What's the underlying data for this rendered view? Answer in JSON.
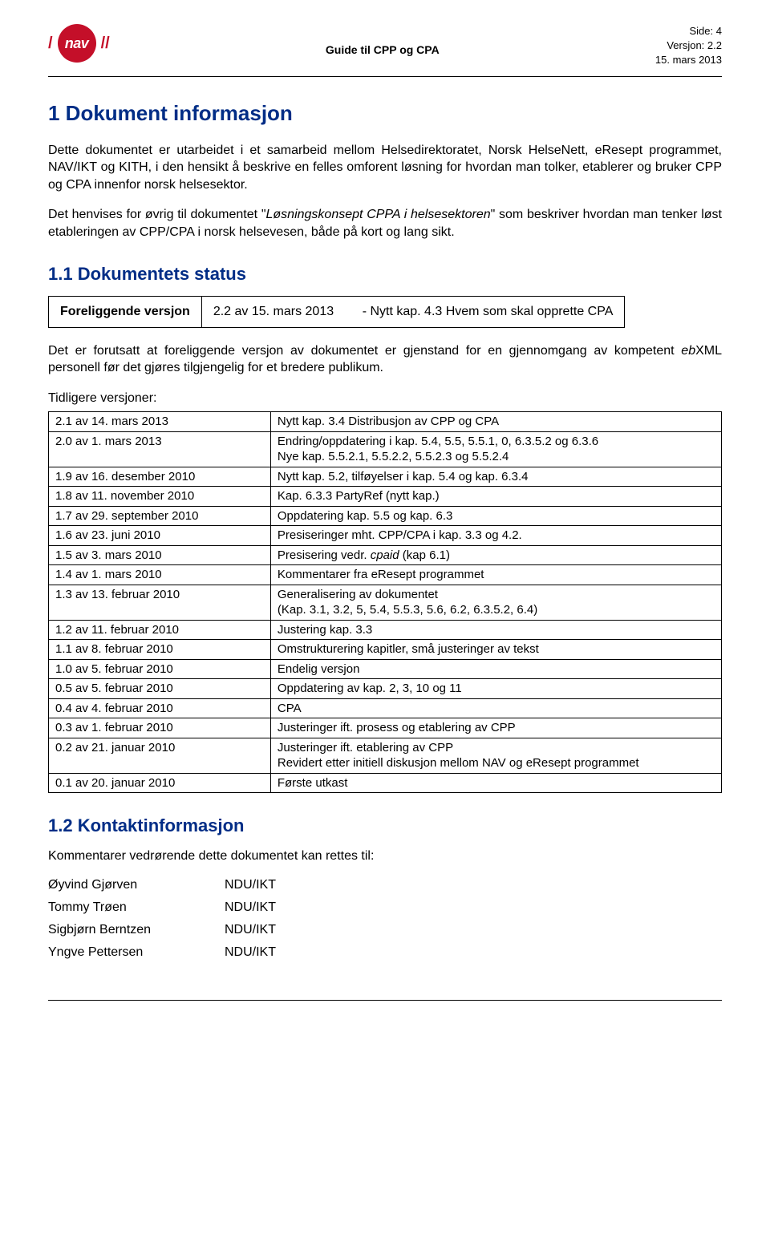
{
  "header": {
    "logo_text": "nav",
    "center_title": "Guide til CPP og CPA",
    "side_label": "Side:",
    "side_value": "4",
    "version_label": "Versjon:",
    "version_value": "2.2",
    "date": "15. mars 2013"
  },
  "section1": {
    "heading": "1  Dokument informasjon",
    "para1_before": "Dette dokumentet er utarbeidet i et samarbeid mellom Helsedirektoratet, Norsk HelseNett, eResept programmet, NAV/IKT og KITH, i den hensikt å beskrive en felles omforent løsning for hvordan man tolker, etablerer og bruker CPP og CPA innenfor norsk helsesektor.",
    "para2_prefix": "Det henvises for øvrig til dokumentet \"",
    "para2_italic": "Løsningskonsept CPPA i helsesektoren",
    "para2_suffix": "\" som beskriver hvordan man tenker løst etableringen av CPP/CPA i norsk helsevesen, både på kort og lang sikt."
  },
  "section1_1": {
    "heading": "1.1 Dokumentets status",
    "current_label": "Foreliggende versjon",
    "current_version": "2.2 av 15. mars 2013",
    "current_note": "- Nytt kap. 4.3 Hvem som skal opprette CPA",
    "para_before": "Det er forutsatt at foreliggende versjon av dokumentet er gjenstand for en gjennomgang av kompetent ",
    "para_italic": "eb",
    "para_after": "XML personell før det gjøres tilgjengelig for et bredere publikum.",
    "prev_label": "Tidligere versjoner:",
    "rows": [
      {
        "v": "2.1 av 14. mars 2013",
        "d": "Nytt kap. 3.4 Distribusjon av CPP og CPA"
      },
      {
        "v": "2.0 av 1. mars 2013",
        "d": "Endring/oppdatering i kap. 5.4, 5.5, 5.5.1, 0, 6.3.5.2 og 6.3.6\nNye kap. 5.5.2.1, 5.5.2.2, 5.5.2.3 og 5.5.2.4"
      },
      {
        "v": "1.9 av 16. desember 2010",
        "d": "Nytt kap. 5.2, tilføyelser i kap. 5.4 og kap. 6.3.4"
      },
      {
        "v": "1.8 av 11. november 2010",
        "d": "Kap. 6.3.3 PartyRef (nytt kap.)"
      },
      {
        "v": "1.7 av 29. september 2010",
        "d": "Oppdatering kap. 5.5 og kap. 6.3"
      },
      {
        "v": "1.6 av 23. juni 2010",
        "d": "Presiseringer mht. CPP/CPA i kap. 3.3 og 4.2."
      },
      {
        "v": "1.5 av 3. mars 2010",
        "d_prefix": "Presisering vedr. ",
        "d_italic": "cpaid",
        "d_suffix": " (kap 6.1)"
      },
      {
        "v": "1.4 av 1. mars 2010",
        "d": "Kommentarer fra eResept programmet"
      },
      {
        "v": "1.3 av 13. februar 2010",
        "d": "Generalisering av dokumentet\n(Kap. 3.1, 3.2, 5, 5.4, 5.5.3, 5.6, 6.2, 6.3.5.2, 6.4)"
      },
      {
        "v": "1.2 av 11. februar 2010",
        "d": "Justering kap. 3.3"
      },
      {
        "v": "1.1 av 8. februar 2010",
        "d": "Omstrukturering kapitler, små justeringer av tekst"
      },
      {
        "v": "1.0 av 5. februar 2010",
        "d": "Endelig versjon"
      },
      {
        "v": "0.5 av 5. februar 2010",
        "d": "Oppdatering av kap. 2, 3, 10 og 11"
      },
      {
        "v": "0.4 av 4. februar 2010",
        "d": "CPA"
      },
      {
        "v": "0.3 av 1. februar 2010",
        "d": "Justeringer ift. prosess og etablering av CPP"
      },
      {
        "v": "0.2 av 21. januar 2010",
        "d": "Justeringer ift. etablering av CPP\nRevidert etter initiell diskusjon mellom NAV og eResept programmet"
      },
      {
        "v": "0.1 av 20. januar 2010",
        "d": "Første utkast"
      }
    ]
  },
  "section1_2": {
    "heading": "1.2 Kontaktinformasjon",
    "intro": "Kommentarer vedrørende dette dokumentet kan rettes til:",
    "contacts": [
      {
        "name": "Øyvind Gjørven",
        "org": "NDU/IKT"
      },
      {
        "name": "Tommy Trøen",
        "org": "NDU/IKT"
      },
      {
        "name": "Sigbjørn Berntzen",
        "org": "NDU/IKT"
      },
      {
        "name": "Yngve Pettersen",
        "org": "NDU/IKT"
      }
    ]
  },
  "colors": {
    "heading_color": "#002d86",
    "logo_bg": "#c40f29",
    "text": "#000000",
    "bg": "#ffffff"
  }
}
